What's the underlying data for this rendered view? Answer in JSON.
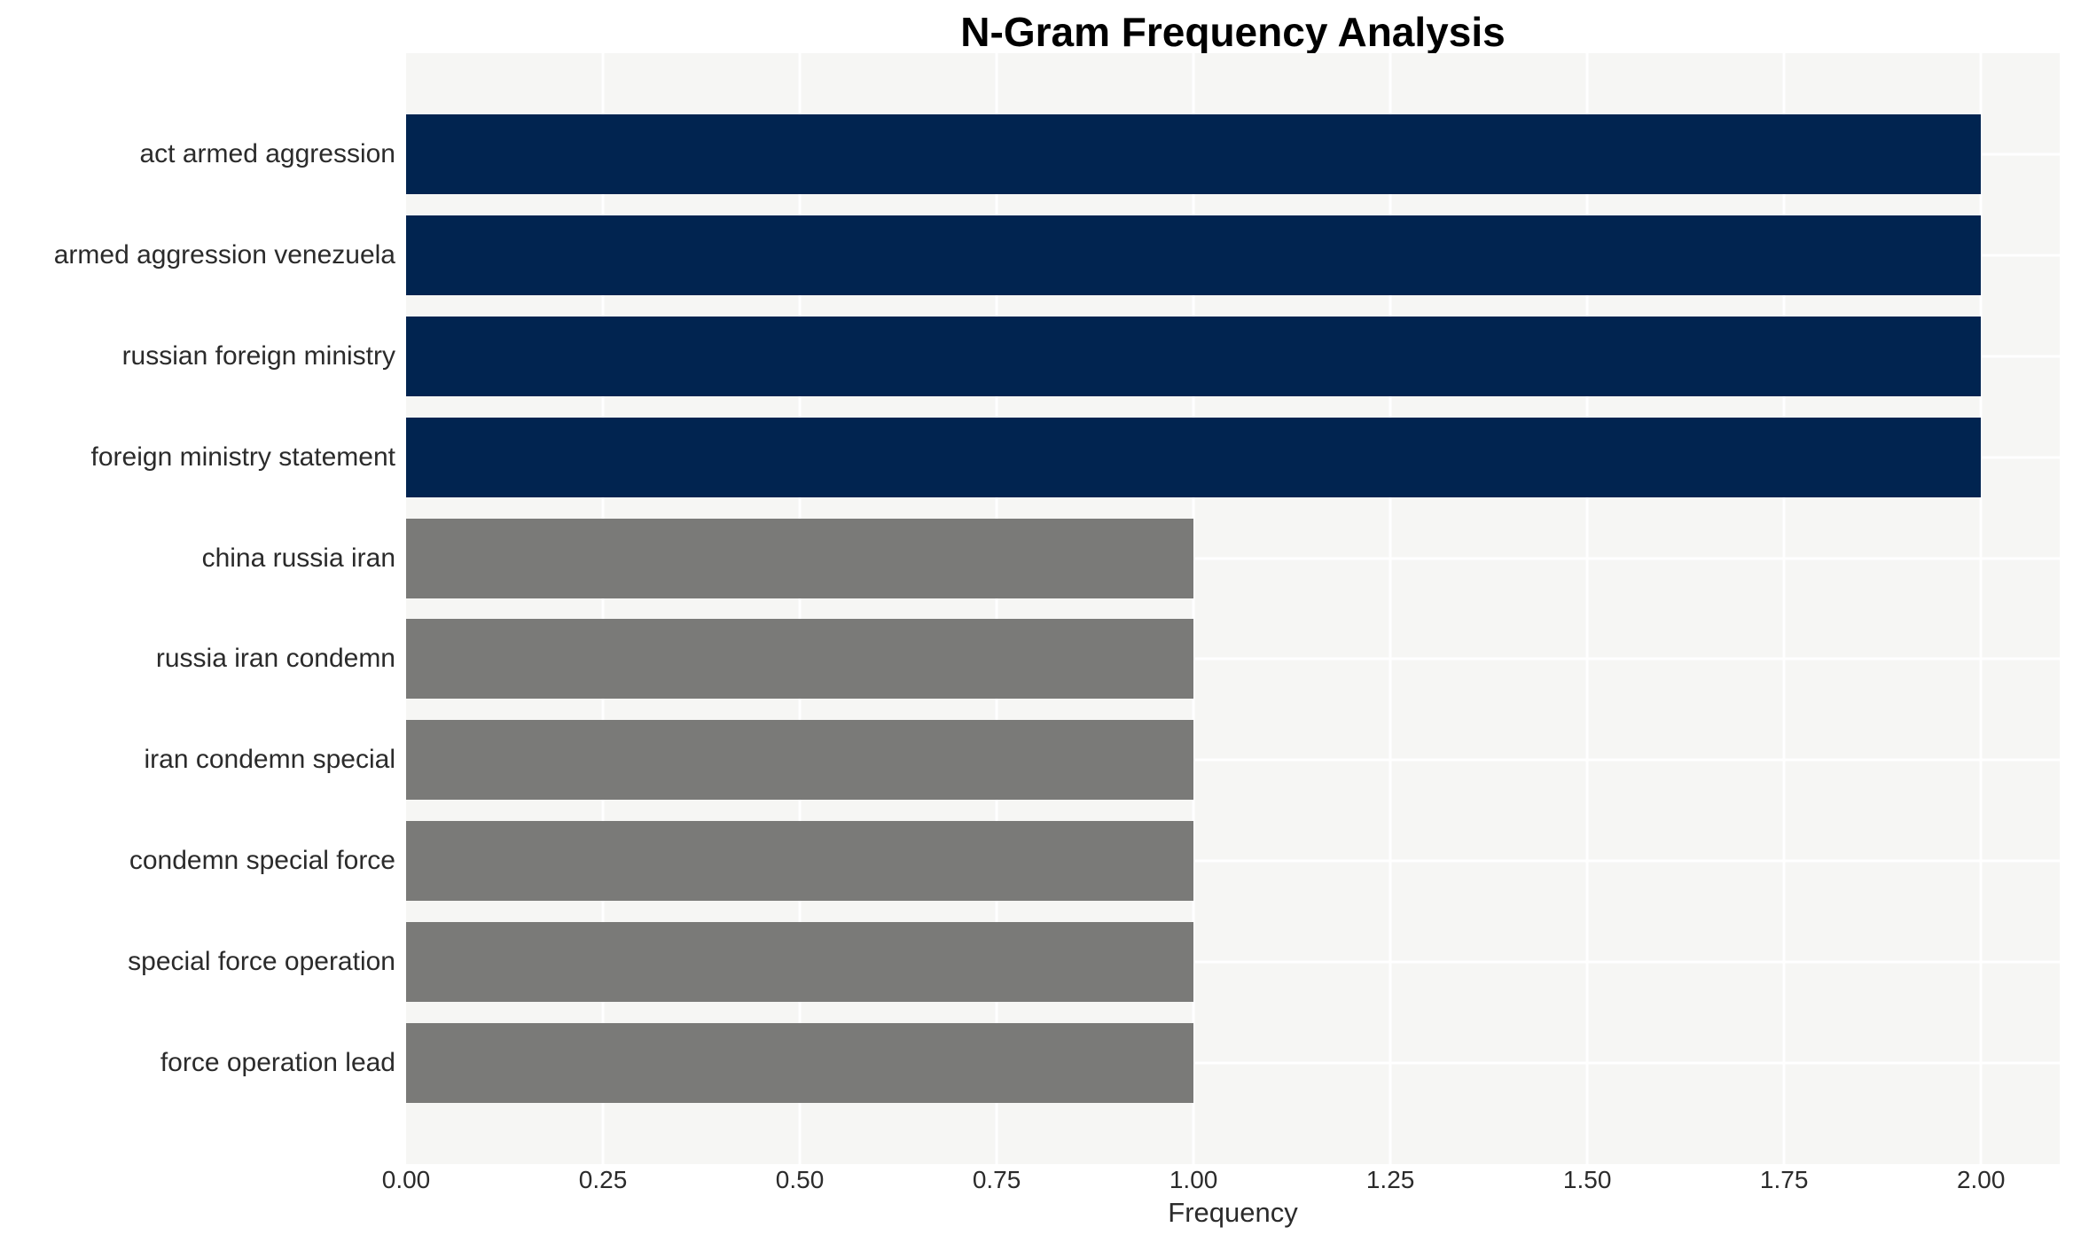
{
  "chart_data": {
    "type": "bar",
    "orientation": "horizontal",
    "title": "N-Gram Frequency Analysis",
    "xlabel": "Frequency",
    "ylabel": "",
    "categories": [
      "act armed aggression",
      "armed aggression venezuela",
      "russian foreign ministry",
      "foreign ministry statement",
      "china russia iran",
      "russia iran condemn",
      "iran condemn special",
      "condemn special force",
      "special force operation",
      "force operation lead"
    ],
    "values": [
      2,
      2,
      2,
      2,
      1,
      1,
      1,
      1,
      1,
      1
    ],
    "bar_colors": [
      "#012450",
      "#012450",
      "#012450",
      "#012450",
      "#7a7a78",
      "#7a7a78",
      "#7a7a78",
      "#7a7a78",
      "#7a7a78",
      "#7a7a78"
    ],
    "x_ticks": [
      "0.00",
      "0.25",
      "0.50",
      "0.75",
      "1.00",
      "1.25",
      "1.50",
      "1.75",
      "2.00"
    ],
    "x_tick_values": [
      0,
      0.25,
      0.5,
      0.75,
      1,
      1.25,
      1.5,
      1.75,
      2
    ],
    "xlim": [
      0,
      2.1
    ],
    "grid": true,
    "legend": false,
    "colors": {
      "plot_background": "#f6f6f4",
      "gridline": "#ffffff",
      "bar_high": "#012450",
      "bar_low": "#7a7a78",
      "text": "#2b2b2b",
      "title_text": "#000000"
    }
  }
}
